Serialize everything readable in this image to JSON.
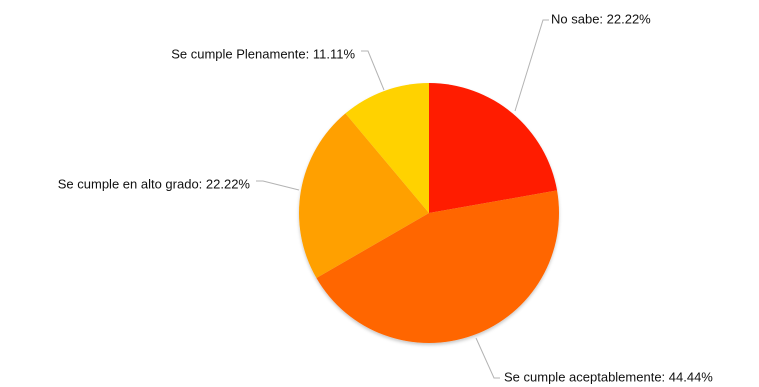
{
  "chart_data": {
    "type": "pie",
    "slices": [
      {
        "label": "No sabe: 22.22%",
        "category": "No sabe",
        "value": 22.22,
        "color": "#ff1a00"
      },
      {
        "label": "Se cumple aceptablemente: 44.44%",
        "category": "Se cumple aceptablemente",
        "value": 44.44,
        "color": "#ff6600"
      },
      {
        "label": "Se cumple en alto grado: 22.22%",
        "category": "Se cumple en alto grado",
        "value": 22.22,
        "color": "#ffa000"
      },
      {
        "label": "Se cumple Plenamente: 11.11%",
        "category": "Se cumple Plenamente",
        "value": 11.11,
        "color": "#ffd200"
      }
    ],
    "start": "12 o'clock",
    "direction": "clockwise",
    "legend": "none",
    "labels": "outside with leader lines"
  }
}
